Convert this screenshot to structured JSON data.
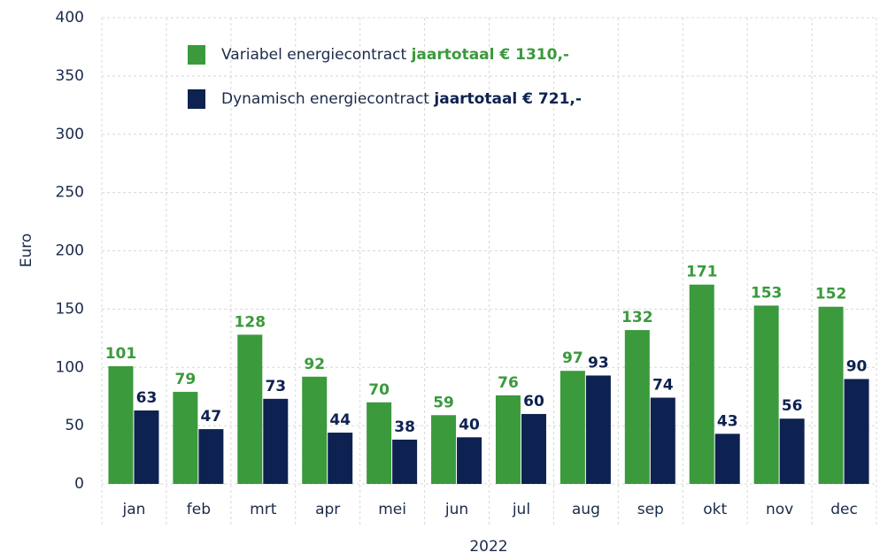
{
  "chart_data": {
    "type": "bar",
    "categories": [
      "jan",
      "feb",
      "mrt",
      "apr",
      "mei",
      "jun",
      "jul",
      "aug",
      "sep",
      "okt",
      "nov",
      "dec"
    ],
    "series": [
      {
        "name": "Variabel energiecontract",
        "total": "jaartotaal € 1310,-",
        "color": "#3a9a3c",
        "values": [
          101,
          79,
          128,
          92,
          70,
          59,
          76,
          97,
          132,
          171,
          153,
          152
        ]
      },
      {
        "name": "Dynamisch energiecontract",
        "total": "jaartotaal € 721,-",
        "color": "#0e2251",
        "values": [
          63,
          47,
          73,
          44,
          38,
          40,
          60,
          93,
          74,
          43,
          56,
          90
        ]
      }
    ],
    "ylabel": "Euro",
    "xlabel": "2022",
    "ylim": [
      0,
      400
    ],
    "yticks": [
      0,
      50,
      100,
      150,
      200,
      250,
      300,
      350,
      400
    ],
    "grid": true
  }
}
